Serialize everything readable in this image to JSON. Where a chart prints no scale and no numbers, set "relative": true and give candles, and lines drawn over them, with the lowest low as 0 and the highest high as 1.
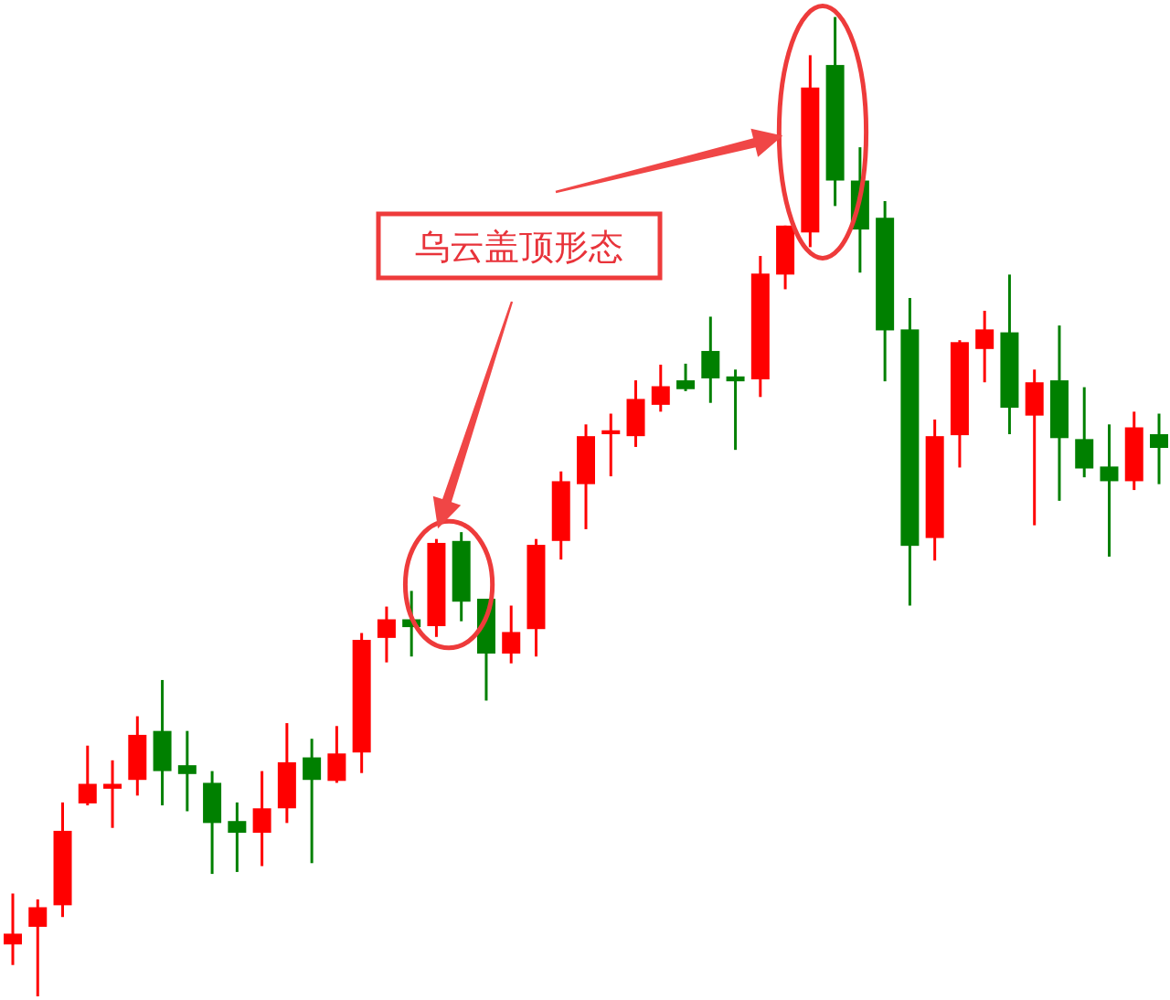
{
  "chart_data": {
    "type": "candlestick",
    "relative": true,
    "categories": [
      null,
      null,
      null,
      null,
      null,
      null,
      null,
      null,
      null,
      null,
      null,
      null,
      null,
      null,
      null,
      null,
      null,
      null,
      null,
      null,
      null,
      null,
      null,
      null,
      null,
      null,
      null,
      null,
      null,
      null,
      null,
      null,
      null,
      null,
      null,
      null,
      null,
      null,
      null,
      null,
      null,
      null,
      null,
      null,
      null,
      null,
      null
    ],
    "ohlc": [
      [
        0.053,
        0.105,
        0.032,
        0.064
      ],
      [
        0.071,
        0.099,
        0.0,
        0.091
      ],
      [
        0.093,
        0.198,
        0.081,
        0.169
      ],
      [
        0.197,
        0.256,
        0.195,
        0.217
      ],
      [
        0.212,
        0.241,
        0.172,
        0.217
      ],
      [
        0.221,
        0.286,
        0.205,
        0.267
      ],
      [
        0.271,
        0.323,
        0.195,
        0.23
      ],
      [
        0.236,
        0.271,
        0.189,
        0.227
      ],
      [
        0.218,
        0.23,
        0.125,
        0.177
      ],
      [
        0.179,
        0.198,
        0.127,
        0.167
      ],
      [
        0.167,
        0.23,
        0.133,
        0.192
      ],
      [
        0.192,
        0.279,
        0.177,
        0.239
      ],
      [
        0.244,
        0.263,
        0.136,
        0.221
      ],
      [
        0.22,
        0.276,
        0.218,
        0.248
      ],
      [
        0.249,
        0.371,
        0.228,
        0.364
      ],
      [
        0.366,
        0.398,
        0.341,
        0.385
      ],
      [
        0.385,
        0.414,
        0.347,
        0.377
      ],
      [
        0.378,
        0.467,
        0.367,
        0.463
      ],
      [
        0.465,
        0.474,
        0.383,
        0.403
      ],
      [
        0.406,
        0.406,
        0.302,
        0.35
      ],
      [
        0.35,
        0.399,
        0.34,
        0.372
      ],
      [
        0.375,
        0.467,
        0.347,
        0.461
      ],
      [
        0.465,
        0.536,
        0.446,
        0.526
      ],
      [
        0.523,
        0.584,
        0.477,
        0.572
      ],
      [
        0.574,
        0.595,
        0.531,
        0.578
      ],
      [
        0.572,
        0.629,
        0.561,
        0.61
      ],
      [
        0.604,
        0.645,
        0.597,
        0.623
      ],
      [
        0.629,
        0.646,
        0.618,
        0.62
      ],
      [
        0.659,
        0.694,
        0.606,
        0.631
      ],
      [
        0.633,
        0.64,
        0.558,
        0.628
      ],
      [
        0.63,
        0.756,
        0.612,
        0.738
      ],
      [
        0.737,
        0.787,
        0.722,
        0.787
      ],
      [
        0.78,
        0.961,
        0.765,
        0.928
      ],
      [
        0.951,
        1.0,
        0.807,
        0.833
      ],
      [
        0.833,
        0.867,
        0.739,
        0.783
      ],
      [
        0.795,
        0.812,
        0.628,
        0.68
      ],
      [
        0.681,
        0.713,
        0.399,
        0.46
      ],
      [
        0.468,
        0.589,
        0.445,
        0.572
      ],
      [
        0.573,
        0.67,
        0.54,
        0.668
      ],
      [
        0.661,
        0.7,
        0.627,
        0.681
      ],
      [
        0.678,
        0.737,
        0.574,
        0.601
      ],
      [
        0.593,
        0.64,
        0.481,
        0.627
      ],
      [
        0.629,
        0.685,
        0.506,
        0.57
      ],
      [
        0.569,
        0.622,
        0.53,
        0.539
      ],
      [
        0.541,
        0.584,
        0.449,
        0.526
      ],
      [
        0.526,
        0.597,
        0.517,
        0.581
      ],
      [
        0.574,
        0.595,
        0.523,
        0.56
      ]
    ],
    "annotations": [
      "乌云盖顶形态"
    ]
  }
}
